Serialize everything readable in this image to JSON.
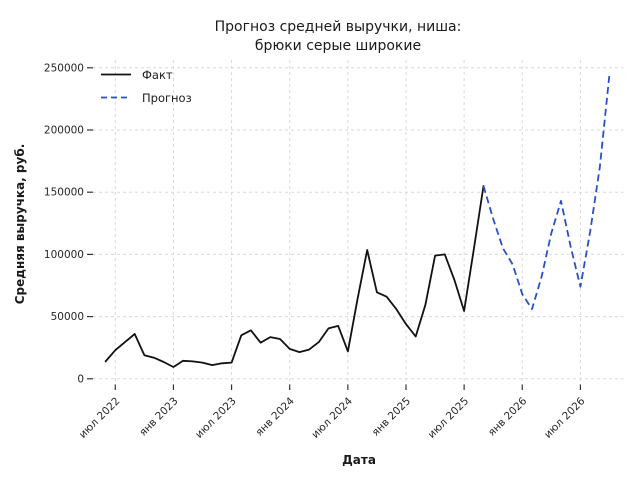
{
  "title": {
    "line1": "Прогноз средней выручки, ниша:",
    "line2": "брюки серые широкие"
  },
  "legend": {
    "fact": "Факт",
    "forecast": "Прогноз"
  },
  "colors": {
    "fact_line": "#111111",
    "forecast_line": "#2a50c8",
    "grid": "#d9d9d9",
    "text": "#262626"
  },
  "chart_data": {
    "type": "line",
    "title": "Прогноз средней выручки, ниша: брюки серые широкие",
    "xlabel": "Дата",
    "ylabel": "Средняя выручка, руб.",
    "ylim": [
      0,
      250000
    ],
    "grid": true,
    "legend_position": "upper left",
    "y_ticks": [
      0,
      50000,
      100000,
      150000,
      200000,
      250000
    ],
    "x_ticks": [
      {
        "label": "июл 2022",
        "month": "2022-07"
      },
      {
        "label": "янв 2023",
        "month": "2023-01"
      },
      {
        "label": "июл 2023",
        "month": "2023-07"
      },
      {
        "label": "янв 2024",
        "month": "2024-01"
      },
      {
        "label": "июл 2024",
        "month": "2024-07"
      },
      {
        "label": "янв 2025",
        "month": "2025-01"
      },
      {
        "label": "июл 2025",
        "month": "2025-07"
      },
      {
        "label": "янв 2026",
        "month": "2026-01"
      },
      {
        "label": "июл 2026",
        "month": "2026-07"
      }
    ],
    "series": [
      {
        "name": "Факт",
        "line_style": "solid",
        "color": "#111111",
        "months": [
          "2022-06",
          "2022-07",
          "2022-08",
          "2022-09",
          "2022-10",
          "2022-11",
          "2022-12",
          "2023-01",
          "2023-02",
          "2023-03",
          "2023-04",
          "2023-05",
          "2023-06",
          "2023-07",
          "2023-08",
          "2023-09",
          "2023-10",
          "2023-11",
          "2023-12",
          "2024-01",
          "2024-02",
          "2024-03",
          "2024-04",
          "2024-05",
          "2024-06",
          "2024-07",
          "2024-08",
          "2024-09",
          "2024-10",
          "2024-11",
          "2024-12",
          "2025-01",
          "2025-02",
          "2025-03",
          "2025-04",
          "2025-05",
          "2025-06",
          "2025-07",
          "2025-08",
          "2025-09"
        ],
        "values": [
          14000,
          23000,
          29500,
          36000,
          19000,
          17000,
          13500,
          9500,
          14500,
          14000,
          13000,
          11000,
          12500,
          13000,
          35000,
          39000,
          29000,
          33500,
          32000,
          24000,
          21500,
          23500,
          29500,
          40500,
          42500,
          22000,
          64000,
          103500,
          69500,
          66000,
          56000,
          44000,
          34000,
          59500,
          99000,
          100000,
          79500,
          54500,
          104000,
          155000
        ]
      },
      {
        "name": "Прогноз",
        "line_style": "dashed",
        "color": "#2a50c8",
        "months": [
          "2025-09",
          "2025-10",
          "2025-11",
          "2025-12",
          "2026-01",
          "2026-02",
          "2026-03",
          "2026-04",
          "2026-05",
          "2026-06",
          "2026-07",
          "2026-08",
          "2026-09",
          "2026-10"
        ],
        "values": [
          155000,
          128500,
          105000,
          92000,
          68000,
          56000,
          82000,
          117000,
          143000,
          106000,
          74000,
          118000,
          170000,
          245000
        ]
      }
    ]
  }
}
